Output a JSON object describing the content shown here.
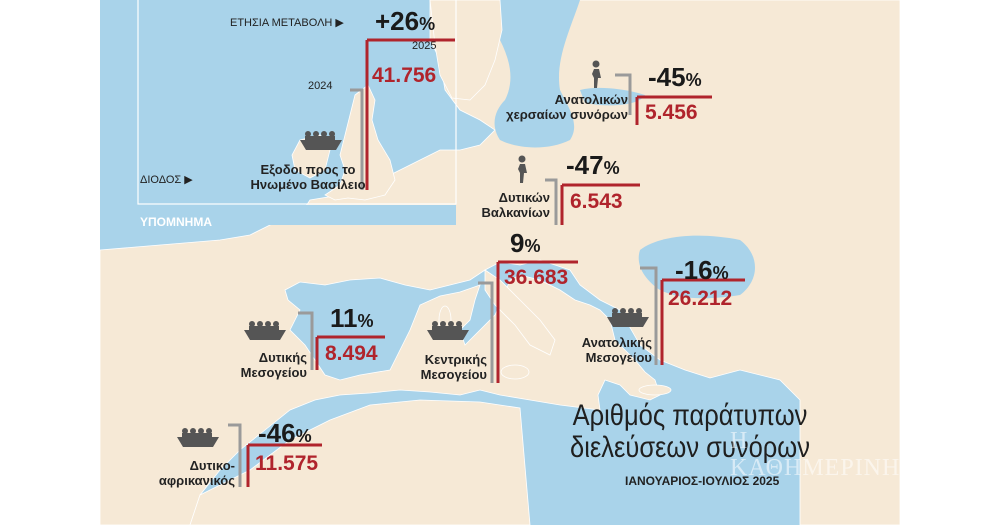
{
  "legend": {
    "heading": "ΥΠΟΜΝΗΜΑ",
    "annual_change": "ΕΤΗΣΙΑ ΜΕΤΑΒΟΛΗ",
    "annual_change_value": "+26",
    "percent_sign": "%",
    "year_2025": "2025",
    "year_2024": "2024",
    "route": "ΔΙΟΔΟΣ",
    "route_name": "Εξοδοι προς το Ηνωμένο Βασίλειο",
    "value_2025": "41.756"
  },
  "routes": [
    {
      "name_line1": "Ανατολικών",
      "name_line2": "χερσαίων συνόρων",
      "change": "-45",
      "value": "5.456",
      "icon": "walker-icon"
    },
    {
      "name_line1": "Δυτικών",
      "name_line2": "Βαλκανίων",
      "change": "-47",
      "value": "6.543",
      "icon": "walker-icon"
    },
    {
      "name_line1": "",
      "name_line2": "",
      "change": "9",
      "value": "36.683",
      "icon": ""
    },
    {
      "name_line1": "Κεντρικής",
      "name_line2": "Μεσογείου",
      "change": "",
      "value": "",
      "icon": "boat-icon"
    },
    {
      "name_line1": "Ανατολικής",
      "name_line2": "Μεσογείου",
      "change": "-16",
      "value": "26.212",
      "icon": "boat-icon"
    },
    {
      "name_line1": "Δυτικής",
      "name_line2": "Μεσογείου",
      "change": "11",
      "value": "8.494",
      "icon": "boat-icon"
    },
    {
      "name_line1": "Δυτικο-",
      "name_line2": "αφρικανικός",
      "change": "-46",
      "value": "11.575",
      "icon": "boat-icon"
    }
  ],
  "title_line1": "Αριθμός παράτυπων",
  "title_line2": "διελεύσεων συνόρων",
  "subtitle": "ΙΑΝΟΥΑΡΙΟΣ-ΙΟΥΛΙΟΣ 2025",
  "watermark": "Η ΚΑΘΗΜΕΡΙΝΗ",
  "colors": {
    "sea": "#a9d3ea",
    "land": "#f6e9d6",
    "accent": "#b0242c",
    "gray": "#9a9a9a",
    "legend_box": "#ffffff"
  }
}
